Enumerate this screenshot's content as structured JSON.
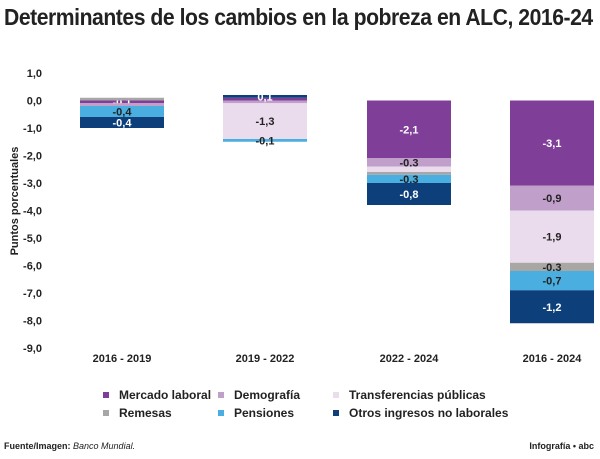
{
  "chart_data": {
    "type": "bar",
    "stacked": true,
    "title": "Determinantes de los cambios en la pobreza en ALC, 2016-24",
    "ylabel": "Puntos porcentuales",
    "ylim": [
      -9,
      1
    ],
    "yticks": [
      "1,0",
      "0,0",
      "-1,0",
      "-2,0",
      "-3,0",
      "-4,0",
      "-5,0",
      "-6,0",
      "-7,0",
      "-8,0",
      "-9,0"
    ],
    "categories": [
      "2016 - 2019",
      "2019 - 2022",
      "2022 - 2024",
      "2016 - 2024"
    ],
    "series": [
      {
        "name": "Mercado laboral",
        "color": "#7f3f98",
        "values": [
          -0.1,
          0.1,
          -2.1,
          -3.1
        ],
        "labels": [
          "-0,1",
          "",
          "-2,1",
          "-3,1"
        ]
      },
      {
        "name": "Demografía",
        "color": "#c09fcb",
        "values": [
          -0.1,
          -0.1,
          -0.3,
          -0.9
        ],
        "labels": [
          "",
          "",
          "-0,3",
          "-0,9"
        ]
      },
      {
        "name": "Transferencias públicas",
        "color": "#eadcec",
        "values": [
          0,
          -1.3,
          -0.2,
          -1.9
        ],
        "labels": [
          "",
          "-1,3",
          "",
          "-1,9"
        ]
      },
      {
        "name": "Remesas",
        "color": "#a9a6a6",
        "values": [
          0.1,
          0,
          -0.1,
          -0.3
        ],
        "labels": [
          "",
          "",
          "",
          "-0,3"
        ]
      },
      {
        "name": "Pensiones",
        "color": "#4aaee0",
        "values": [
          -0.4,
          -0.1,
          -0.3,
          -0.7
        ],
        "labels": [
          "-0,4",
          "-0,1",
          "-0,3",
          "-0,7"
        ]
      },
      {
        "name": "Otros ingresos no laborales",
        "color": "#0d3f7a",
        "values": [
          -0.4,
          0.1,
          -0.8,
          -1.2
        ],
        "labels": [
          "-0,4",
          "0,1",
          "-0,8",
          "-1,2"
        ]
      }
    ],
    "legend": "bottom"
  },
  "footer": {
    "source_label": "Fuente/Imagen:",
    "source": "Banco Mundial.",
    "credit": "Infografía • abc"
  }
}
